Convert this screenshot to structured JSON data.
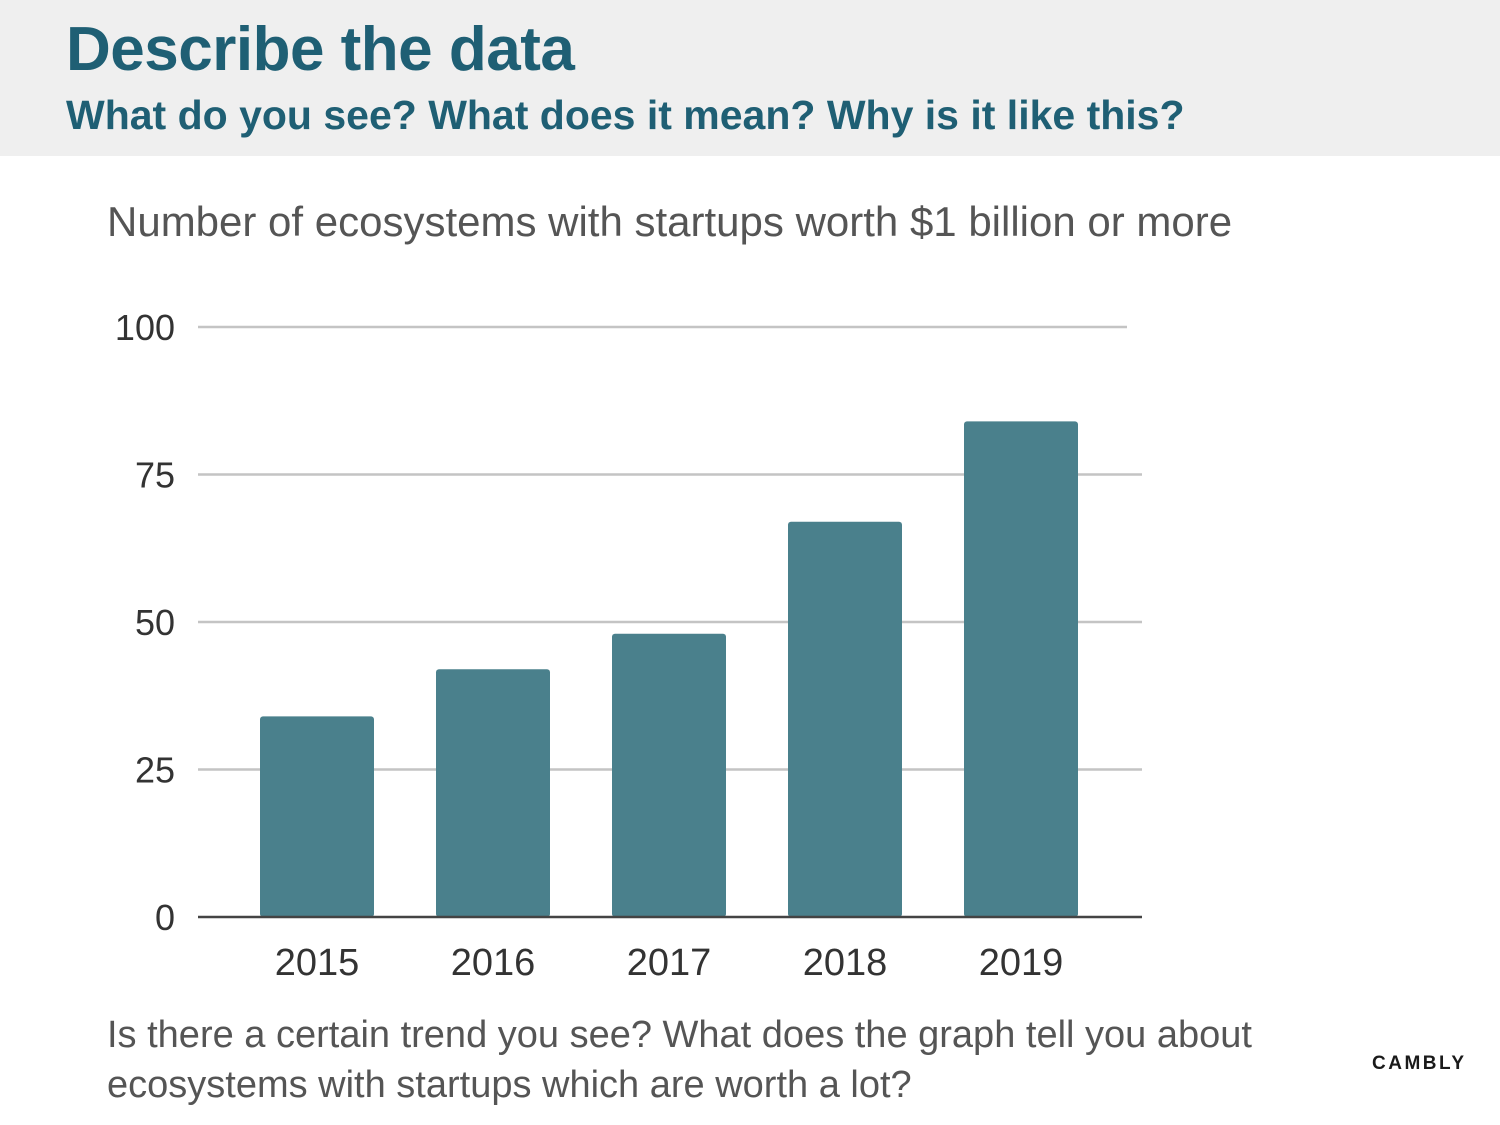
{
  "header": {
    "title": "Describe the data",
    "subtitle": "What do you see? What does it mean? Why is it like this?"
  },
  "chart_data": {
    "type": "bar",
    "title": "Number of ecosystems with startups worth $1 billion or more",
    "xlabel": "",
    "ylabel": "",
    "categories": [
      "2015",
      "2016",
      "2017",
      "2018",
      "2019"
    ],
    "values": [
      34,
      42,
      48,
      67,
      84
    ],
    "ylim": [
      0,
      100
    ],
    "yticks": [
      0,
      25,
      50,
      75,
      100
    ],
    "grid": true,
    "legend": "none",
    "bar_color": "#4a808c"
  },
  "footer": {
    "question_line1": "Is there a certain trend you see? What does the graph tell you about",
    "question_line2": "ecosystems with startups which are worth a lot?",
    "brand": "CAMBLY"
  }
}
